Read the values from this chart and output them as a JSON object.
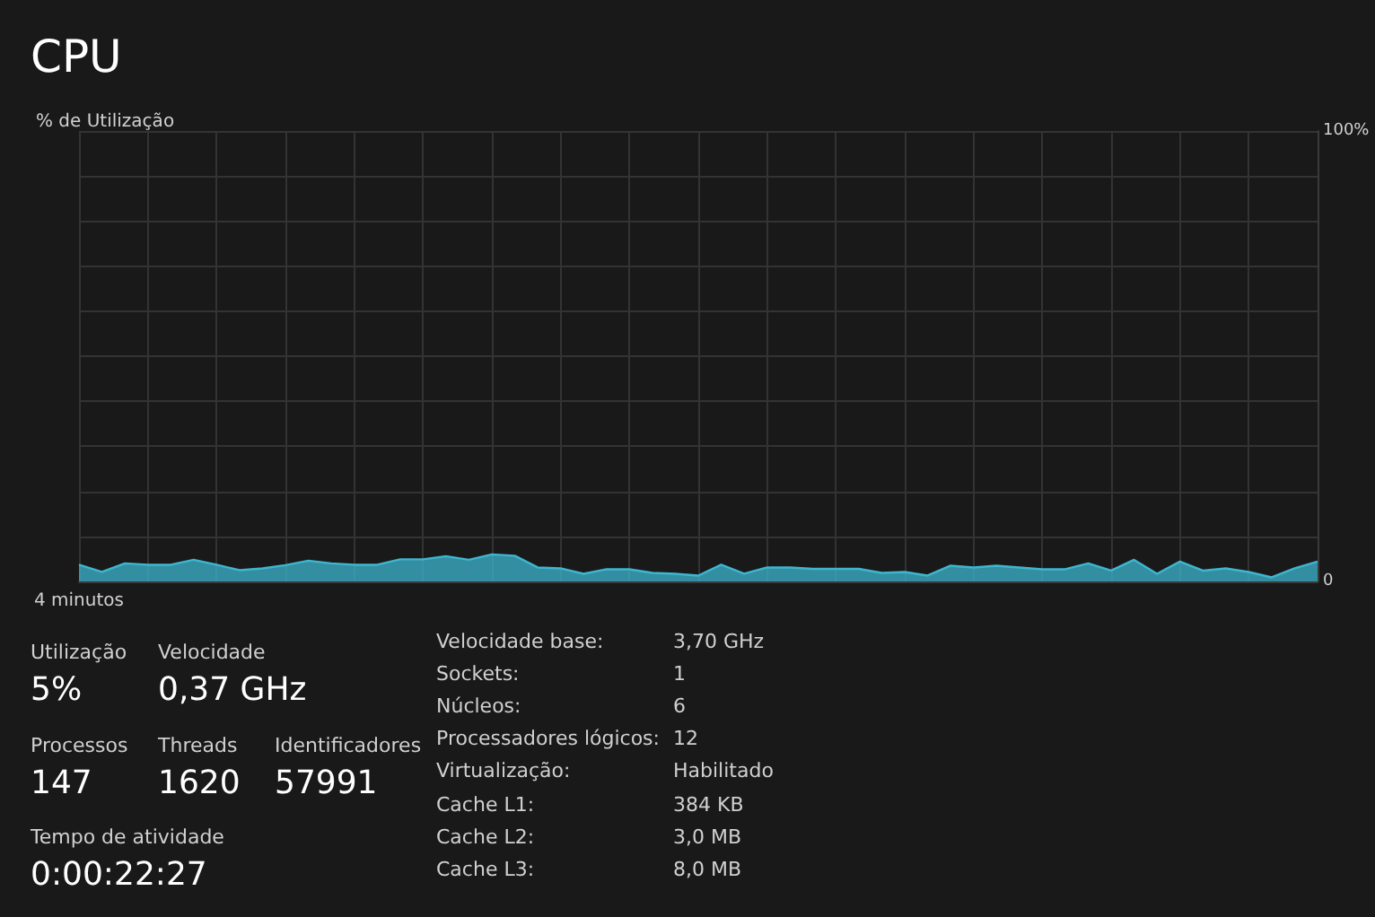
{
  "chart_data": [
    {
      "type": "area",
      "title": "CPU",
      "ylabel": "% de Utilização",
      "categories": [
        "4 minutos",
        null,
        null,
        null,
        null,
        null,
        null,
        null,
        null,
        null,
        null,
        null,
        null,
        null,
        null,
        null,
        null,
        null,
        null,
        null,
        null,
        null,
        null,
        null,
        null,
        null,
        null,
        null,
        null,
        null,
        null,
        null,
        null,
        null,
        null,
        null,
        null,
        null,
        null,
        null,
        null,
        null,
        null,
        null,
        null,
        null,
        null,
        null,
        null,
        null,
        null,
        null,
        null,
        null,
        null
      ],
      "ylim": [
        0,
        100
      ],
      "yticks": [
        0,
        {
          "value": 10,
          "label": null
        },
        {
          "value": 20,
          "label": null
        },
        {
          "value": 30,
          "label": null
        },
        {
          "value": 40,
          "label": null
        },
        {
          "value": 50,
          "label": null
        },
        {
          "value": 60,
          "label": null
        },
        {
          "value": 70,
          "label": null
        },
        {
          "value": 80,
          "label": null
        },
        {
          "value": 90,
          "label": null
        },
        {
          "value": 100,
          "label": "100%"
        }
      ],
      "grid": true,
      "series": [
        {
          "color": "#3eb6cf",
          "values": [
            3.7,
            2.1,
            4.0,
            3.7,
            3.7,
            4.8,
            3.7,
            2.5,
            2.9,
            3.6,
            4.6,
            4.0,
            3.7,
            3.7,
            4.9,
            4.9,
            5.6,
            4.8,
            6.0,
            5.7,
            3.1,
            2.9,
            1.7,
            2.7,
            2.7,
            1.9,
            1.7,
            1.3,
            3.7,
            1.7,
            3.1,
            3.1,
            2.8,
            2.8,
            2.8,
            1.9,
            2.1,
            1.3,
            3.5,
            3.1,
            3.5,
            3.1,
            2.7,
            2.7,
            4.0,
            2.4,
            4.8,
            1.7,
            4.4,
            2.4,
            2.9,
            2.1,
            0.9,
            2.9,
            4.4
          ]
        }
      ]
    },
    {
      "type": "other",
      "annotations": [
        "Utilização",
        "5%",
        "Velocidade",
        "0,37 GHz",
        "Processos",
        "147",
        "Threads",
        "1620",
        "Identificadores",
        "57991",
        "Tempo de atividade",
        "0:00:22:27",
        "Velocidade base:",
        "3,70 GHz",
        "Sockets:",
        "1",
        "Núcleos:",
        "6",
        "Processadores lógicos:",
        "12",
        "Virtualização:",
        "Habilitado",
        "Cache L1:",
        "384 KB",
        "Cache L2:",
        "3,0 MB",
        "Cache L3:",
        "8,0 MB"
      ]
    }
  ]
}
